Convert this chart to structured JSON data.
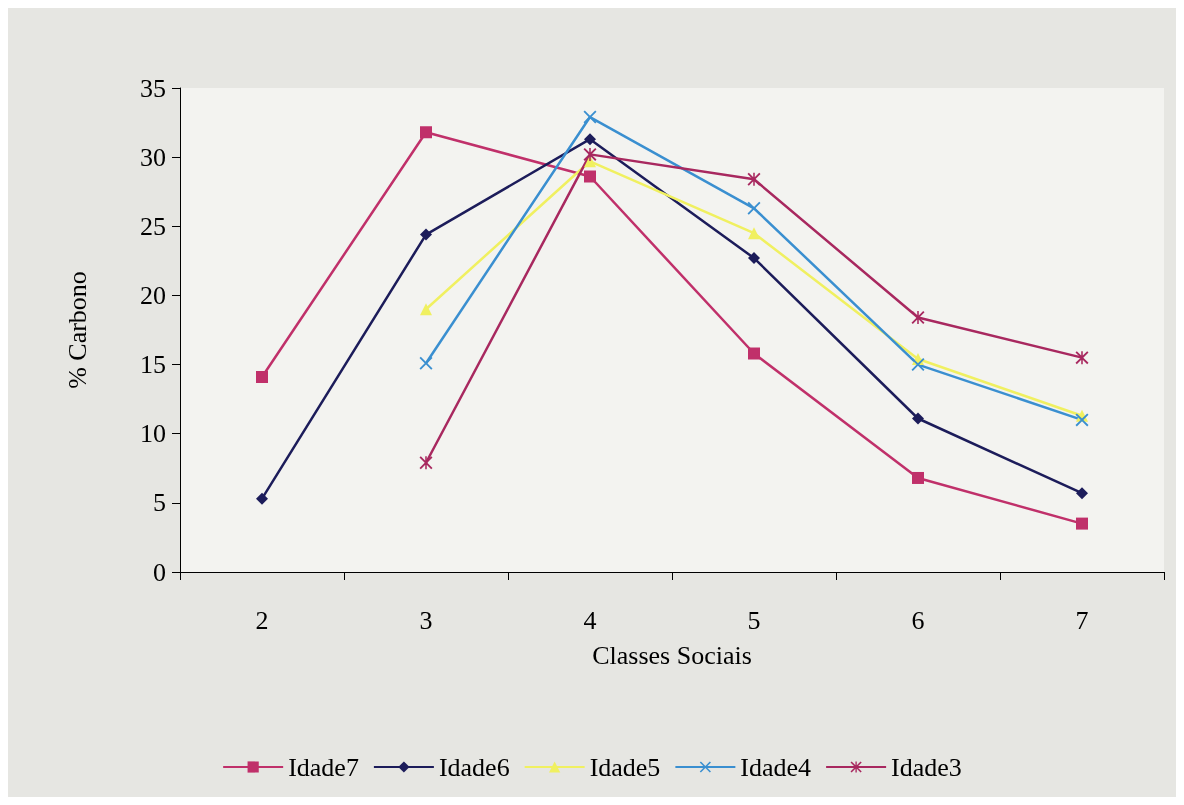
{
  "chart_data": {
    "type": "line",
    "xlabel": "Classes Sociais",
    "ylabel": "% Carbono",
    "categories": [
      "2",
      "3",
      "4",
      "5",
      "6",
      "7"
    ],
    "ylim": [
      0,
      35
    ],
    "yticks": [
      0,
      5,
      10,
      15,
      20,
      25,
      30,
      35
    ],
    "grid": false,
    "legend": "bottom",
    "series": [
      {
        "name": "Idade7",
        "color": "#c0306a",
        "marker": "square",
        "values": [
          14.1,
          31.8,
          28.6,
          15.8,
          6.8,
          3.5
        ]
      },
      {
        "name": "Idade6",
        "color": "#1c1c5a",
        "marker": "diamond",
        "values": [
          5.3,
          24.4,
          31.3,
          22.7,
          11.1,
          5.7
        ]
      },
      {
        "name": "Idade5",
        "color": "#f0f060",
        "marker": "triangle",
        "values": [
          null,
          19.0,
          29.7,
          24.5,
          15.4,
          11.3
        ]
      },
      {
        "name": "Idade4",
        "color": "#3a8fd0",
        "marker": "cross",
        "values": [
          null,
          15.1,
          32.9,
          26.3,
          15.0,
          11.0
        ]
      },
      {
        "name": "Idade3",
        "color": "#a8285f",
        "marker": "star",
        "values": [
          null,
          7.9,
          30.2,
          28.4,
          18.4,
          15.5
        ]
      }
    ]
  }
}
